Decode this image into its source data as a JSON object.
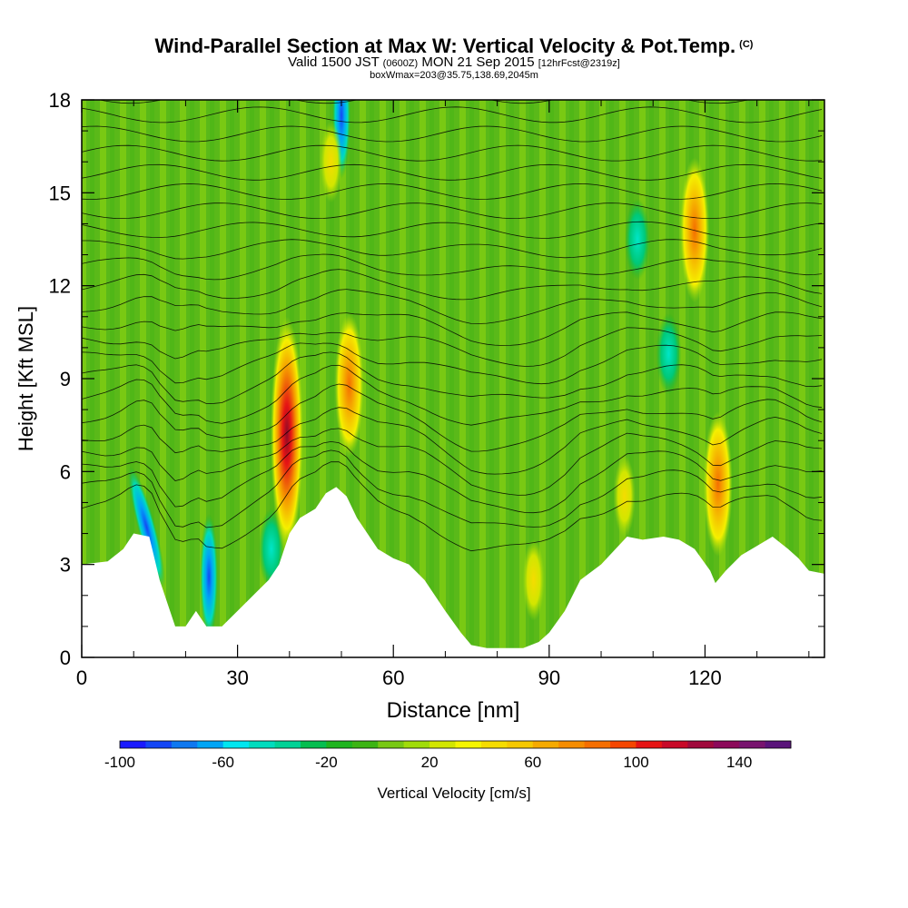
{
  "header": {
    "title": "Wind-Parallel Section at Max W: Vertical Velocity & Pot.Temp.",
    "title_mark": "(C)",
    "valid_pre": "Valid 1500 JST",
    "valid_utc": "(0600Z)",
    "valid_post": "MON 21 Sep 2015",
    "forecast": "[12hrFcst@2319z]",
    "box_info": "boxWmax=203@35.75,138.69,2045m"
  },
  "chart_data": {
    "type": "heatmap",
    "xlabel": "Distance [nm]",
    "ylabel": "Height [Kft MSL]",
    "xlim": [
      0,
      143
    ],
    "ylim": [
      0,
      18
    ],
    "x_ticks": [
      0,
      30,
      60,
      90,
      120
    ],
    "x_tick_labels": [
      "0",
      "30",
      "60",
      "90",
      "120"
    ],
    "y_ticks": [
      0,
      3,
      6,
      9,
      12,
      15,
      18
    ],
    "y_tick_labels": [
      "0",
      "3",
      "6",
      "9",
      "12",
      "15",
      "18"
    ],
    "terrain_kft": [
      [
        0,
        3.0
      ],
      [
        5,
        3.1
      ],
      [
        8,
        3.5
      ],
      [
        10,
        4.0
      ],
      [
        13,
        3.9
      ],
      [
        15,
        2.5
      ],
      [
        17,
        1.5
      ],
      [
        18,
        1.0
      ],
      [
        20,
        1.0
      ],
      [
        22,
        1.5
      ],
      [
        24,
        1.0
      ],
      [
        27,
        1.0
      ],
      [
        30,
        1.5
      ],
      [
        33,
        2.0
      ],
      [
        36,
        2.5
      ],
      [
        38,
        3.0
      ],
      [
        40,
        4.0
      ],
      [
        42,
        4.5
      ],
      [
        45,
        4.8
      ],
      [
        47,
        5.3
      ],
      [
        49,
        5.5
      ],
      [
        51,
        5.2
      ],
      [
        53,
        4.5
      ],
      [
        55,
        4.0
      ],
      [
        57,
        3.5
      ],
      [
        60,
        3.2
      ],
      [
        63,
        3.0
      ],
      [
        66,
        2.5
      ],
      [
        70,
        1.5
      ],
      [
        73,
        0.8
      ],
      [
        75,
        0.4
      ],
      [
        78,
        0.3
      ],
      [
        85,
        0.3
      ],
      [
        88,
        0.5
      ],
      [
        90,
        0.8
      ],
      [
        93,
        1.5
      ],
      [
        96,
        2.5
      ],
      [
        100,
        3.0
      ],
      [
        105,
        3.9
      ],
      [
        108,
        3.8
      ],
      [
        112,
        3.9
      ],
      [
        115,
        3.8
      ],
      [
        118,
        3.5
      ],
      [
        121,
        2.8
      ],
      [
        122,
        2.4
      ],
      [
        124,
        2.8
      ],
      [
        127,
        3.3
      ],
      [
        130,
        3.6
      ],
      [
        133,
        3.9
      ],
      [
        136,
        3.5
      ],
      [
        138,
        3.2
      ],
      [
        140,
        2.8
      ],
      [
        143,
        2.7
      ]
    ],
    "updraft_cores": [
      {
        "x": 39.5,
        "y": 7.2,
        "wmax": 140
      },
      {
        "x": 51.5,
        "y": 8.8,
        "wmax": 70
      },
      {
        "x": 118,
        "y": 13.8,
        "wmax": 70
      },
      {
        "x": 122.5,
        "y": 5.6,
        "wmax": 90
      },
      {
        "x": 104.5,
        "y": 5.2,
        "wmax": 40
      },
      {
        "x": 48,
        "y": 16.0,
        "wmax": 40
      },
      {
        "x": 87,
        "y": 2.5,
        "wmax": 30
      }
    ],
    "downdraft_cores": [
      {
        "x": 12.5,
        "y": 4.2,
        "wmin": -90
      },
      {
        "x": 24.5,
        "y": 2.6,
        "wmin": -60
      },
      {
        "x": 50,
        "y": 17.5,
        "wmin": -60
      },
      {
        "x": 36.5,
        "y": 3.5,
        "wmin": -40
      },
      {
        "x": 113,
        "y": 9.8,
        "wmin": -40
      },
      {
        "x": 107,
        "y": 13.5,
        "wmin": -40
      }
    ],
    "colorbar": {
      "label": "Vertical Velocity [cm/s]",
      "min": -100,
      "max": 160,
      "step": 10,
      "tick_labels": [
        "-100",
        "-60",
        "-20",
        "20",
        "60",
        "100",
        "140"
      ],
      "colors": [
        "#1a1aff",
        "#1446f5",
        "#0f78f0",
        "#00a5f5",
        "#00e6f0",
        "#00dcbe",
        "#00d296",
        "#05be50",
        "#1eb41e",
        "#3cb414",
        "#78c814",
        "#a0dc0a",
        "#d2e600",
        "#f5f500",
        "#f5dc00",
        "#f5c800",
        "#f5aa00",
        "#f58c00",
        "#f56e00",
        "#f54600",
        "#e61414",
        "#c80a28",
        "#a00a3c",
        "#8c0a5a",
        "#78146e",
        "#5a147a"
      ]
    }
  }
}
